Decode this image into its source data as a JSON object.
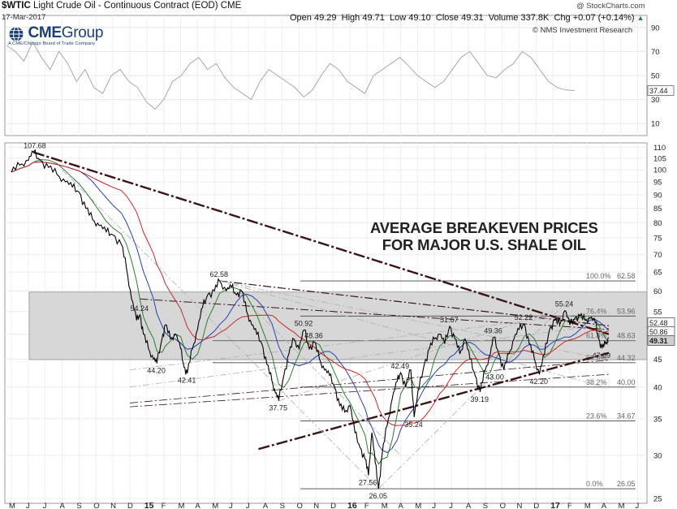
{
  "header": {
    "symbol": "$WTIC",
    "description": "Light Crude Oil - Continuous Contract (EOD)",
    "exchange": "CME",
    "date": "17-Mar-2017",
    "copyright": "@ StockCharts.com",
    "open_label": "Open",
    "open": "49.29",
    "high_label": "High",
    "high": "49.71",
    "low_label": "Low",
    "low": "49.10",
    "close_label": "Close",
    "close": "49.31",
    "volume_label": "Volume",
    "volume": "337.8K",
    "chg_label": "Chg",
    "chg": "+0.07 (+0.14%)",
    "chg_arrow": "▲",
    "credit": "© NMS Investment Research"
  },
  "logo": {
    "name": "CME",
    "name_suffix": "Group",
    "sub": "A CME/Chicago Board of Trade Company",
    "color": "#1d3f73"
  },
  "annotation_lines": [
    "AVERAGE BREAKEVEN PRICES",
    "FOR MAJOR U.S. SHALE OIL"
  ],
  "chart_data": [
    {
      "type": "line",
      "panel": "indicator",
      "yticks": [
        10,
        30,
        50,
        70,
        90
      ],
      "ylim": [
        0,
        100
      ],
      "last_value_label": "37.44",
      "series": [
        {
          "values": [
            75,
            70,
            62,
            78,
            65,
            55,
            70,
            60,
            45,
            55,
            40,
            35,
            50,
            55,
            45,
            40,
            28,
            22,
            30,
            45,
            50,
            60,
            65,
            55,
            60,
            48,
            40,
            35,
            30,
            45,
            55,
            50,
            45,
            40,
            32,
            38,
            50,
            60,
            55,
            45,
            40,
            35,
            50,
            55,
            60,
            65,
            58,
            50,
            45,
            40,
            45,
            55,
            65,
            70,
            60,
            50,
            48,
            55,
            60,
            70,
            65,
            55,
            45,
            40,
            38,
            37.44
          ]
        }
      ]
    },
    {
      "type": "line",
      "panel": "price",
      "scale": "log",
      "x_ticks": [
        "M",
        "J",
        "J",
        "A",
        "S",
        "O",
        "N",
        "D",
        "15",
        "F",
        "M",
        "A",
        "M",
        "J",
        "J",
        "A",
        "S",
        "O",
        "N",
        "D",
        "16",
        "F",
        "M",
        "A",
        "M",
        "J",
        "J",
        "A",
        "S",
        "O",
        "N",
        "D",
        "17",
        "F",
        "M",
        "A",
        "M",
        "J"
      ],
      "yticks": [
        25,
        30,
        35,
        40,
        45,
        50,
        55,
        60,
        65,
        70,
        75,
        80,
        85,
        90,
        95,
        100,
        105,
        110
      ],
      "ylim": [
        24.5,
        112
      ],
      "series": [
        {
          "name": "$WTIC",
          "values": [
            {
              "x": 0.0,
              "y": 99.0
            },
            {
              "x": 0.5,
              "y": 102.0
            },
            {
              "x": 1.0,
              "y": 104.0
            },
            {
              "x": 1.3,
              "y": 107.68
            },
            {
              "x": 1.7,
              "y": 104.0
            },
            {
              "x": 2.2,
              "y": 101.0
            },
            {
              "x": 2.7,
              "y": 98.0
            },
            {
              "x": 3.2,
              "y": 95.0
            },
            {
              "x": 3.6,
              "y": 93.0
            },
            {
              "x": 4.0,
              "y": 91.0
            },
            {
              "x": 4.4,
              "y": 85.0
            },
            {
              "x": 4.8,
              "y": 81.0
            },
            {
              "x": 5.2,
              "y": 79.0
            },
            {
              "x": 5.6,
              "y": 77.0
            },
            {
              "x": 6.0,
              "y": 76.0
            },
            {
              "x": 6.5,
              "y": 73.0
            },
            {
              "x": 6.8,
              "y": 66.0
            },
            {
              "x": 7.1,
              "y": 58.0
            },
            {
              "x": 7.4,
              "y": 53.0
            },
            {
              "x": 7.6,
              "y": 54.24
            },
            {
              "x": 7.8,
              "y": 50.0
            },
            {
              "x": 8.1,
              "y": 47.0
            },
            {
              "x": 8.4,
              "y": 45.0
            },
            {
              "x": 8.6,
              "y": 44.2
            },
            {
              "x": 8.9,
              "y": 49.0
            },
            {
              "x": 9.1,
              "y": 52.0
            },
            {
              "x": 9.4,
              "y": 49.0
            },
            {
              "x": 9.7,
              "y": 50.0
            },
            {
              "x": 10.0,
              "y": 47.0
            },
            {
              "x": 10.2,
              "y": 43.5
            },
            {
              "x": 10.4,
              "y": 42.41
            },
            {
              "x": 10.7,
              "y": 47.0
            },
            {
              "x": 11.0,
              "y": 51.0
            },
            {
              "x": 11.3,
              "y": 56.0
            },
            {
              "x": 11.6,
              "y": 59.0
            },
            {
              "x": 12.0,
              "y": 60.0
            },
            {
              "x": 12.3,
              "y": 62.58
            },
            {
              "x": 12.7,
              "y": 60.0
            },
            {
              "x": 13.0,
              "y": 61.0
            },
            {
              "x": 13.3,
              "y": 59.0
            },
            {
              "x": 13.6,
              "y": 60.0
            },
            {
              "x": 13.9,
              "y": 55.0
            },
            {
              "x": 14.2,
              "y": 52.0
            },
            {
              "x": 14.5,
              "y": 50.0
            },
            {
              "x": 14.8,
              "y": 48.0
            },
            {
              "x": 15.1,
              "y": 44.0
            },
            {
              "x": 15.4,
              "y": 41.0
            },
            {
              "x": 15.6,
              "y": 39.0
            },
            {
              "x": 15.8,
              "y": 37.75
            },
            {
              "x": 16.1,
              "y": 42.0
            },
            {
              "x": 16.4,
              "y": 46.0
            },
            {
              "x": 16.7,
              "y": 49.0
            },
            {
              "x": 17.0,
              "y": 47.0
            },
            {
              "x": 17.3,
              "y": 50.92
            },
            {
              "x": 17.6,
              "y": 47.0
            },
            {
              "x": 17.9,
              "y": 48.36
            },
            {
              "x": 18.2,
              "y": 45.0
            },
            {
              "x": 18.5,
              "y": 43.0
            },
            {
              "x": 18.8,
              "y": 42.0
            },
            {
              "x": 19.1,
              "y": 40.0
            },
            {
              "x": 19.4,
              "y": 37.0
            },
            {
              "x": 19.7,
              "y": 36.0
            },
            {
              "x": 20.0,
              "y": 37.0
            },
            {
              "x": 20.3,
              "y": 33.0
            },
            {
              "x": 20.6,
              "y": 31.0
            },
            {
              "x": 20.9,
              "y": 29.5
            },
            {
              "x": 21.1,
              "y": 27.56
            },
            {
              "x": 21.3,
              "y": 33.0
            },
            {
              "x": 21.5,
              "y": 29.0
            },
            {
              "x": 21.7,
              "y": 26.05
            },
            {
              "x": 21.9,
              "y": 30.0
            },
            {
              "x": 22.2,
              "y": 34.0
            },
            {
              "x": 22.5,
              "y": 38.0
            },
            {
              "x": 22.8,
              "y": 41.0
            },
            {
              "x": 23.0,
              "y": 42.49
            },
            {
              "x": 23.3,
              "y": 40.0
            },
            {
              "x": 23.6,
              "y": 43.0
            },
            {
              "x": 23.8,
              "y": 35.24
            },
            {
              "x": 24.1,
              "y": 40.0
            },
            {
              "x": 24.4,
              "y": 44.0
            },
            {
              "x": 24.7,
              "y": 47.0
            },
            {
              "x": 25.0,
              "y": 49.0
            },
            {
              "x": 25.3,
              "y": 50.0
            },
            {
              "x": 25.6,
              "y": 48.0
            },
            {
              "x": 25.9,
              "y": 51.67
            },
            {
              "x": 26.2,
              "y": 49.0
            },
            {
              "x": 26.5,
              "y": 46.0
            },
            {
              "x": 26.8,
              "y": 49.0
            },
            {
              "x": 27.1,
              "y": 45.0
            },
            {
              "x": 27.4,
              "y": 42.0
            },
            {
              "x": 27.7,
              "y": 39.19
            },
            {
              "x": 28.0,
              "y": 43.0
            },
            {
              "x": 28.3,
              "y": 46.0
            },
            {
              "x": 28.5,
              "y": 49.36
            },
            {
              "x": 28.8,
              "y": 46.0
            },
            {
              "x": 29.1,
              "y": 43.0
            },
            {
              "x": 29.4,
              "y": 46.0
            },
            {
              "x": 29.7,
              "y": 49.0
            },
            {
              "x": 30.0,
              "y": 51.0
            },
            {
              "x": 30.3,
              "y": 52.22
            },
            {
              "x": 30.6,
              "y": 48.0
            },
            {
              "x": 30.9,
              "y": 45.0
            },
            {
              "x": 31.2,
              "y": 42.2
            },
            {
              "x": 31.5,
              "y": 46.0
            },
            {
              "x": 31.8,
              "y": 51.0
            },
            {
              "x": 32.1,
              "y": 53.0
            },
            {
              "x": 32.4,
              "y": 52.0
            },
            {
              "x": 32.7,
              "y": 55.24
            },
            {
              "x": 33.0,
              "y": 52.0
            },
            {
              "x": 33.3,
              "y": 53.5
            },
            {
              "x": 33.6,
              "y": 54.0
            },
            {
              "x": 33.9,
              "y": 53.0
            },
            {
              "x": 34.2,
              "y": 53.5
            },
            {
              "x": 34.5,
              "y": 52.5
            },
            {
              "x": 34.7,
              "y": 49.0
            },
            {
              "x": 34.9,
              "y": 47.09
            },
            {
              "x": 35.1,
              "y": 48.0
            },
            {
              "x": 35.3,
              "y": 49.31
            }
          ]
        }
      ],
      "moving_average_colors": [
        "#2e7d32",
        "#2a3fb0",
        "#c62828"
      ],
      "last_value_labels": [
        {
          "text": "52.48",
          "y": 52.48,
          "bg": "#ffffff"
        },
        {
          "text": "50.86",
          "y": 50.86,
          "bg": "#ffffff"
        },
        {
          "text": "49.31",
          "y": 49.31,
          "bg": "#cfcfcf"
        }
      ],
      "point_labels": [
        {
          "text": "107.68",
          "x": 1.3,
          "y": 107.68
        },
        {
          "text": "54.24",
          "x": 7.6,
          "y": 54.24
        },
        {
          "text": "44.20",
          "x": 8.6,
          "y": 44.2
        },
        {
          "text": "42.41",
          "x": 10.4,
          "y": 42.41
        },
        {
          "text": "62.58",
          "x": 12.3,
          "y": 62.58
        },
        {
          "text": "37.75",
          "x": 15.8,
          "y": 37.75
        },
        {
          "text": "50.92",
          "x": 17.3,
          "y": 50.92
        },
        {
          "text": "48.36",
          "x": 17.9,
          "y": 48.36
        },
        {
          "text": "42.49",
          "x": 23.0,
          "y": 42.49
        },
        {
          "text": "35.24",
          "x": 23.8,
          "y": 35.24
        },
        {
          "text": "27.56",
          "x": 21.1,
          "y": 27.56
        },
        {
          "text": "26.05",
          "x": 21.7,
          "y": 26.05
        },
        {
          "text": "51.67",
          "x": 25.9,
          "y": 51.67
        },
        {
          "text": "39.19",
          "x": 27.7,
          "y": 39.19
        },
        {
          "text": "43.00",
          "x": 28.6,
          "y": 43.0
        },
        {
          "text": "49.36",
          "x": 28.5,
          "y": 49.36
        },
        {
          "text": "52.22",
          "x": 30.3,
          "y": 52.22
        },
        {
          "text": "42.20",
          "x": 31.2,
          "y": 42.2
        },
        {
          "text": "55.24",
          "x": 32.7,
          "y": 55.24
        },
        {
          "text": "47.09",
          "x": 34.9,
          "y": 47.09
        }
      ],
      "fibonacci": [
        {
          "label": "100.0%",
          "value": "62.58",
          "y": 62.58
        },
        {
          "label": "76.4%",
          "value": "53.96",
          "y": 53.96
        },
        {
          "label": "61.8%",
          "value": "48.63",
          "y": 48.63
        },
        {
          "label": "50.0%",
          "value": "44.32",
          "y": 44.32
        },
        {
          "label": "38.2%",
          "value": "40.00",
          "y": 40.0
        },
        {
          "label": "23.6%",
          "value": "34.67",
          "y": 34.67
        },
        {
          "label": "0.0%",
          "value": "26.05",
          "y": 26.05
        }
      ],
      "breakeven_band": {
        "low": 44.9,
        "high": 59.7,
        "color": "#d3d3d3"
      },
      "trendlines": [
        {
          "x1": 1.3,
          "y1": 107.68,
          "x2": 35.3,
          "y2": 50.0,
          "style": "dash-dot",
          "width": 2.4
        },
        {
          "x1": 12.3,
          "y1": 62.58,
          "x2": 35.3,
          "y2": 51.8,
          "style": "dash-dot",
          "width": 1.2
        },
        {
          "x1": 7.6,
          "y1": 58.0,
          "x2": 35.3,
          "y2": 51.0,
          "style": "dash-dot",
          "width": 1.0
        },
        {
          "x1": 14.6,
          "y1": 30.8,
          "x2": 35.3,
          "y2": 46.2,
          "style": "dash-dot",
          "width": 2.4
        },
        {
          "x1": 7.0,
          "y1": 37.4,
          "x2": 35.3,
          "y2": 44.8,
          "style": "dash-dot",
          "width": 0.8
        },
        {
          "x1": 7.0,
          "y1": 36.8,
          "x2": 35.3,
          "y2": 42.2,
          "style": "dash-dot",
          "width": 0.8
        }
      ]
    }
  ]
}
